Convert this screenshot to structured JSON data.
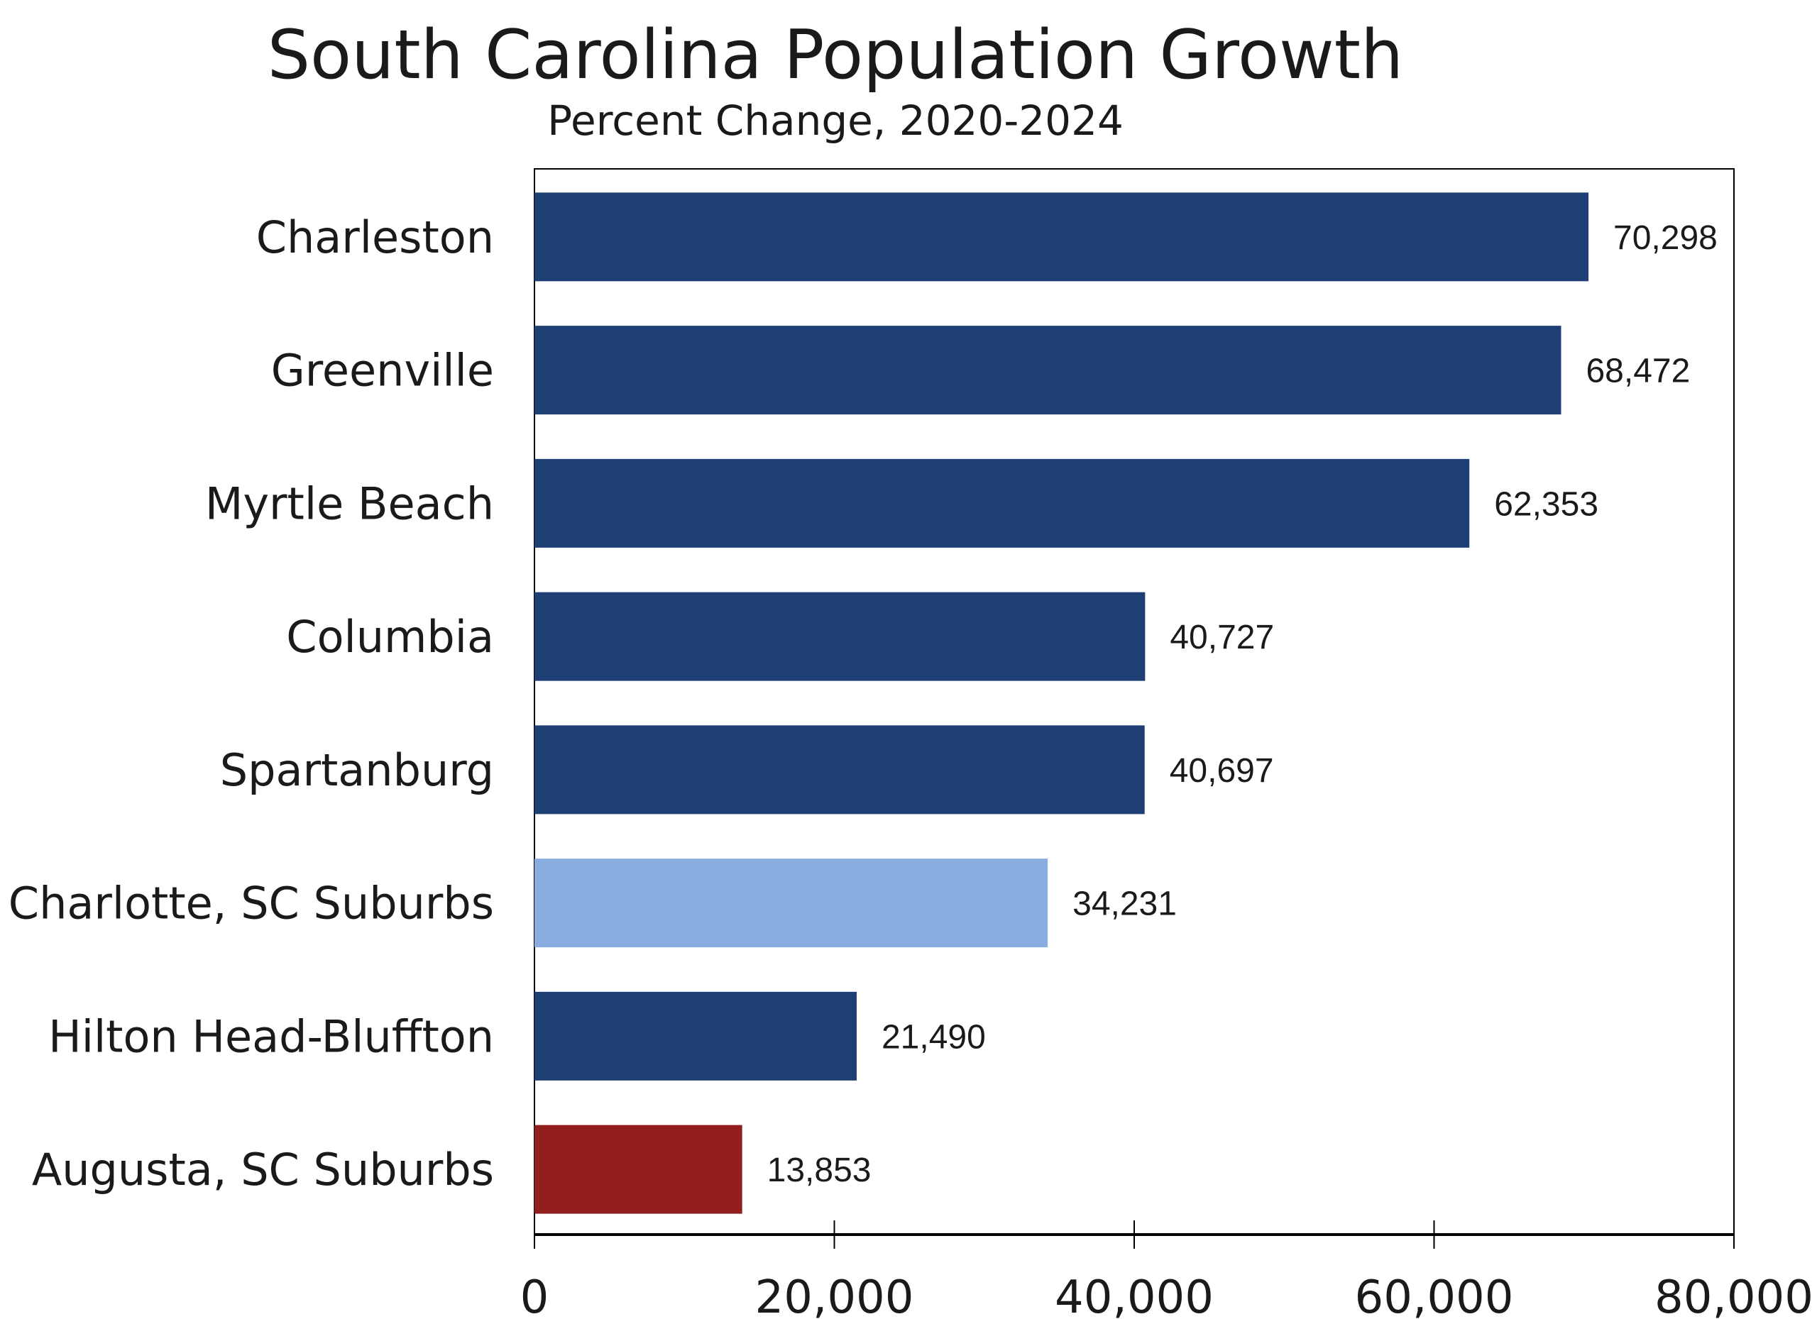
{
  "chart_data": {
    "type": "bar",
    "orientation": "horizontal",
    "title": "South Carolina Population Growth",
    "subtitle": "Percent Change, 2020-2024",
    "xlabel": "",
    "ylabel": "",
    "xlim": [
      0,
      80000
    ],
    "xticks": [
      0,
      20000,
      40000,
      60000,
      80000
    ],
    "xtick_labels": [
      "0",
      "20,000",
      "40,000",
      "60,000",
      "80,000"
    ],
    "grid": false,
    "categories": [
      "Charleston",
      "Greenville",
      "Myrtle Beach",
      "Columbia",
      "Spartanburg",
      "Charlotte, SC Suburbs",
      "Hilton Head-Bluffton",
      "Augusta, SC Suburbs"
    ],
    "values": [
      70298,
      68472,
      62353,
      40727,
      40697,
      34231,
      21490,
      13853
    ],
    "value_labels": [
      "70,298",
      "68,472",
      "62,353",
      "40,727",
      "40,697",
      "34,231",
      "21,490",
      "13,853"
    ],
    "colors": [
      "#1e3f73",
      "#1e3f73",
      "#1e3f73",
      "#1e3f73",
      "#1e3f73",
      "#8aade1",
      "#1e3f73",
      "#921e1e"
    ]
  }
}
